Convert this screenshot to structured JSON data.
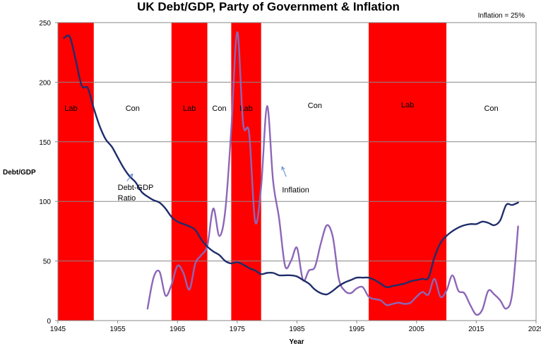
{
  "chart_data": {
    "type": "line",
    "title": "UK Debt/GDP, Party of Government & Inflation",
    "xlabel": "Year",
    "ylabel": "Debt/GDP",
    "xlim": [
      1945,
      2025
    ],
    "ylim": [
      0,
      250
    ],
    "x_ticks": [
      1945,
      1955,
      1965,
      1975,
      1985,
      1995,
      2005,
      2015,
      2025
    ],
    "y_ticks": [
      0,
      50,
      100,
      150,
      200,
      250
    ],
    "grid": "horizontal",
    "note": "Inflation = 25%",
    "colors": {
      "labour_band": "#ff0000",
      "debt_line": "#1f2d6b",
      "inflation_line": "#8c67b8",
      "arrow": "#5b8bd0",
      "grid": "#888888"
    },
    "governments": [
      {
        "party": "Lab",
        "start": 1945,
        "end": 1951
      },
      {
        "party": "Con",
        "start": 1951,
        "end": 1964
      },
      {
        "party": "Lab",
        "start": 1964,
        "end": 1970
      },
      {
        "party": "Con",
        "start": 1970,
        "end": 1974
      },
      {
        "party": "Lab",
        "start": 1974,
        "end": 1979
      },
      {
        "party": "Con",
        "start": 1979,
        "end": 1997
      },
      {
        "party": "Lab",
        "start": 1997,
        "end": 2010
      },
      {
        "party": "Con",
        "start": 2010,
        "end": 2025
      }
    ],
    "annotations": [
      {
        "text_lines": [
          "Debt-GDP",
          "Ratio"
        ],
        "x": 1955,
        "y": 112,
        "arrow_to": [
          1957.5,
          123
        ]
      },
      {
        "text_lines": [
          "Inflation"
        ],
        "x": 1982.5,
        "y": 110,
        "arrow_to": [
          1982.5,
          129
        ]
      }
    ],
    "series": [
      {
        "name": "Debt-GDP",
        "x": [
          1946,
          1947,
          1948,
          1949,
          1950,
          1951,
          1952,
          1953,
          1954,
          1955,
          1956,
          1957,
          1958,
          1959,
          1960,
          1961,
          1962,
          1963,
          1964,
          1965,
          1966,
          1967,
          1968,
          1969,
          1970,
          1971,
          1972,
          1973,
          1974,
          1975,
          1976,
          1977,
          1978,
          1979,
          1980,
          1981,
          1982,
          1983,
          1984,
          1985,
          1986,
          1987,
          1988,
          1989,
          1990,
          1991,
          1992,
          1993,
          1994,
          1995,
          1996,
          1997,
          1998,
          1999,
          2000,
          2001,
          2002,
          2003,
          2004,
          2005,
          2006,
          2007,
          2008,
          2009,
          2010,
          2011,
          2012,
          2013,
          2014,
          2015,
          2016,
          2017,
          2018,
          2019,
          2020,
          2021,
          2022
        ],
        "values": [
          237,
          238,
          218,
          197,
          195,
          178,
          163,
          152,
          146,
          137,
          128,
          121,
          116,
          108,
          104,
          101,
          99,
          94,
          87,
          83,
          81,
          79,
          76,
          68,
          62,
          58,
          55,
          50,
          48,
          49,
          47,
          44,
          42,
          39,
          40,
          40,
          38,
          38,
          38,
          37,
          34,
          31,
          26,
          23,
          22,
          25,
          29,
          32,
          34,
          36,
          36,
          36,
          34,
          31,
          28,
          29,
          30,
          31,
          33,
          34,
          35,
          36,
          53,
          65,
          71,
          75,
          78,
          80,
          81,
          81,
          83,
          82,
          80,
          84,
          97,
          97,
          99
        ]
      },
      {
        "name": "Inflation",
        "x": [
          1960,
          1961,
          1962,
          1963,
          1964,
          1965,
          1966,
          1967,
          1968,
          1969,
          1970,
          1971,
          1972,
          1973,
          1974,
          1975,
          1976,
          1977,
          1978,
          1979,
          1980,
          1981,
          1982,
          1983,
          1984,
          1985,
          1986,
          1987,
          1988,
          1989,
          1990,
          1991,
          1992,
          1993,
          1994,
          1995,
          1996,
          1997,
          1998,
          1999,
          2000,
          2001,
          2002,
          2003,
          2004,
          2005,
          2006,
          2007,
          2008,
          2009,
          2010,
          2011,
          2012,
          2013,
          2014,
          2015,
          2016,
          2017,
          2018,
          2019,
          2020,
          2021,
          2022
        ],
        "values": [
          10,
          36,
          41,
          21,
          30,
          46,
          40,
          26,
          48,
          55,
          63,
          94,
          71,
          92,
          160,
          242,
          165,
          157,
          83,
          112,
          180,
          117,
          86,
          46,
          50,
          61,
          34,
          42,
          45,
          65,
          80,
          70,
          35,
          25,
          23,
          27,
          28,
          20,
          18,
          17,
          13,
          14,
          15,
          14,
          15,
          20,
          24,
          22,
          35,
          20,
          25,
          38,
          25,
          23,
          13,
          5,
          9,
          25,
          22,
          17,
          10,
          22,
          79
        ]
      }
    ]
  }
}
